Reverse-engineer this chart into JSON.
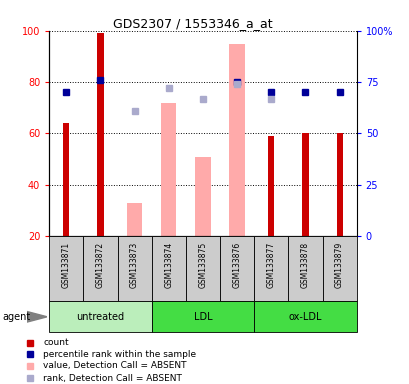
{
  "title": "GDS2307 / 1553346_a_at",
  "samples": [
    "GSM133871",
    "GSM133872",
    "GSM133873",
    "GSM133874",
    "GSM133875",
    "GSM133876",
    "GSM133877",
    "GSM133878",
    "GSM133879"
  ],
  "count_values": [
    64,
    99,
    null,
    null,
    null,
    null,
    59,
    60,
    60
  ],
  "percentile_values": [
    70,
    76,
    null,
    null,
    null,
    75,
    70,
    70,
    70
  ],
  "absent_value_bars": [
    null,
    null,
    33,
    72,
    51,
    95,
    20,
    null,
    null
  ],
  "absent_rank_dots": [
    null,
    null,
    61,
    72,
    67,
    74,
    67,
    null,
    null
  ],
  "ylim_left": [
    20,
    100
  ],
  "ylim_right": [
    0,
    100
  ],
  "left_ticks": [
    20,
    40,
    60,
    80,
    100
  ],
  "right_tick_labels": [
    "0",
    "25",
    "50",
    "75",
    "100%"
  ],
  "count_color": "#cc0000",
  "percentile_color": "#000099",
  "absent_value_color": "#ffaaaa",
  "absent_rank_color": "#aaaacc",
  "sample_bg_color": "#cccccc",
  "group_configs": [
    {
      "label": "untreated",
      "start": 0,
      "end": 2,
      "color": "#bbeebb"
    },
    {
      "label": "LDL",
      "start": 3,
      "end": 5,
      "color": "#44dd44"
    },
    {
      "label": "ox-LDL",
      "start": 6,
      "end": 8,
      "color": "#44dd44"
    }
  ],
  "legend_items": [
    {
      "color": "#cc0000",
      "label": "count"
    },
    {
      "color": "#000099",
      "label": "percentile rank within the sample"
    },
    {
      "color": "#ffaaaa",
      "label": "value, Detection Call = ABSENT"
    },
    {
      "color": "#aaaacc",
      "label": "rank, Detection Call = ABSENT"
    }
  ]
}
